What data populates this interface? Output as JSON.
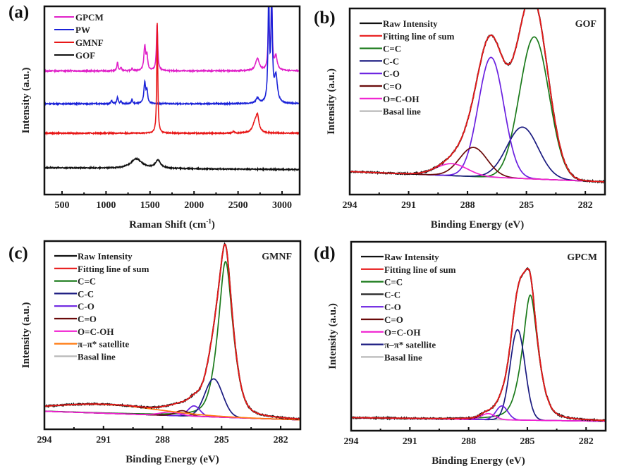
{
  "chart_data": [
    {
      "panel": "(a)",
      "type": "line",
      "title": "",
      "xlabel": "Raman Shift (cm",
      "xlabel_sup": "-1",
      "xlabel_close": ")",
      "ylabel": "Intensity (a.u.)",
      "xlim": [
        300,
        3200
      ],
      "xticks": [
        500,
        1000,
        1500,
        2000,
        2500,
        3000
      ],
      "yticks": [],
      "legend_position": "top-left",
      "offset_stacked": true,
      "series": [
        {
          "name": "GPCM",
          "color": "#e020c8",
          "baseline": 0.66,
          "peaks": [
            [
              1130,
              0.05,
              8
            ],
            [
              1170,
              0.02,
              8
            ],
            [
              1295,
              0.015,
              8
            ],
            [
              1440,
              0.14,
              12
            ],
            [
              1465,
              0.08,
              10
            ],
            [
              1580,
              0.27,
              9
            ],
            [
              2720,
              0.07,
              25
            ],
            [
              2848,
              0.3,
              9
            ],
            [
              2882,
              0.42,
              8
            ],
            [
              2930,
              0.08,
              18
            ]
          ]
        },
        {
          "name": "PW",
          "color": "#1a22d8",
          "baseline": 0.47,
          "peaks": [
            [
              1063,
              0.02,
              8
            ],
            [
              1130,
              0.04,
              8
            ],
            [
              1170,
              0.015,
              8
            ],
            [
              1295,
              0.025,
              8
            ],
            [
              1440,
              0.12,
              12
            ],
            [
              1465,
              0.07,
              10
            ],
            [
              2720,
              0.03,
              20
            ],
            [
              2848,
              0.6,
              9
            ],
            [
              2882,
              0.58,
              10
            ],
            [
              2930,
              0.15,
              20
            ]
          ]
        },
        {
          "name": "GMNF",
          "color": "#e81818",
          "baseline": 0.3,
          "peaks": [
            [
              1582,
              0.64,
              7
            ],
            [
              2450,
              0.01,
              10
            ],
            [
              2690,
              0.05,
              30
            ],
            [
              2720,
              0.09,
              20
            ]
          ]
        },
        {
          "name": "GOF",
          "color": "#111111",
          "baseline": 0.1,
          "peaks": [
            [
              1345,
              0.055,
              75
            ],
            [
              1590,
              0.045,
              35
            ]
          ]
        }
      ]
    },
    {
      "panel": "(b)",
      "sample": "GOF",
      "type": "line",
      "xlabel": "Binding Energy (eV)",
      "ylabel": "Intensity (a.u.)",
      "xlim": [
        294,
        281
      ],
      "xticks": [
        294,
        291,
        288,
        285,
        282
      ],
      "legend_position": "top-left",
      "baseline_line": {
        "left": 0.08,
        "right": 0.02
      },
      "components": [
        {
          "name": "C=C",
          "color": "#1a7a1a",
          "center": 284.6,
          "height": 0.83,
          "width": 0.75
        },
        {
          "name": "C-C",
          "color": "#1a1a80",
          "center": 285.2,
          "height": 0.3,
          "width": 0.8
        },
        {
          "name": "C-O",
          "color": "#6a20e0",
          "center": 286.8,
          "height": 0.7,
          "width": 0.65
        },
        {
          "name": "C=O",
          "color": "#6a0a0a",
          "center": 287.7,
          "height": 0.17,
          "width": 0.7
        },
        {
          "name": "O=C-OH",
          "color": "#f020d0",
          "center": 288.8,
          "height": 0.07,
          "width": 0.8
        }
      ],
      "legend": [
        {
          "name": "Raw Intensity",
          "color": "#111111"
        },
        {
          "name": "Fitting line of sum",
          "color": "#e81818"
        },
        {
          "name": "C=C",
          "color": "#1a7a1a"
        },
        {
          "name": "C-C",
          "color": "#1a1a80"
        },
        {
          "name": "C-O",
          "color": "#6a20e0"
        },
        {
          "name": "C=O",
          "color": "#6a0a0a"
        },
        {
          "name": "O=C-OH",
          "color": "#f020d0"
        },
        {
          "name": "Basal line",
          "color": "#b8b8b8"
        }
      ]
    },
    {
      "panel": "(c)",
      "sample": "GMNF",
      "type": "line",
      "xlabel": "Binding Energy (eV)",
      "ylabel": "Intensity (a.u.)",
      "xlim": [
        294,
        281
      ],
      "xticks": [
        294,
        291,
        288,
        285,
        282
      ],
      "legend_position": "top-left",
      "baseline_line": {
        "left": 0.05,
        "right": 0.0
      },
      "components": [
        {
          "name": "C=C",
          "color": "#1a7a1a",
          "center": 284.8,
          "height": 0.9,
          "width": 0.38,
          "lorentz": true
        },
        {
          "name": "C-C",
          "color": "#1a1a80",
          "center": 285.4,
          "height": 0.22,
          "width": 0.45
        },
        {
          "name": "C-O",
          "color": "#6a20e0",
          "center": 286.4,
          "height": 0.06,
          "width": 0.3
        },
        {
          "name": "C=O",
          "color": "#6a0a0a",
          "center": 287.0,
          "height": 0.03,
          "width": 0.35
        },
        {
          "name": "O=C-OH",
          "color": "#f020d0",
          "center": 287.6,
          "height": 0.02,
          "width": 0.5
        },
        {
          "name": "π–π* satellite",
          "color": "#ff7a10",
          "center": 291.0,
          "height": 0.05,
          "width": 2.8
        }
      ],
      "legend": [
        {
          "name": "Raw Intensity",
          "color": "#111111"
        },
        {
          "name": "Fitting line of sum",
          "color": "#e81818"
        },
        {
          "name": "C=C",
          "color": "#1a7a1a"
        },
        {
          "name": "C-C",
          "color": "#1a1a80"
        },
        {
          "name": "C-O",
          "color": "#6a20e0"
        },
        {
          "name": "C=O",
          "color": "#6a0a0a"
        },
        {
          "name": "O=C-OH",
          "color": "#f020d0"
        },
        {
          "name": "π–π* satellite",
          "color": "#ff7a10"
        },
        {
          "name": "Basal line",
          "color": "#b8b8b8"
        }
      ]
    },
    {
      "panel": "(d)",
      "sample": "GPCM",
      "type": "line",
      "xlabel": "Binding Energy (eV)",
      "ylabel": "Intensity (a.u.)",
      "xlim": [
        294,
        281
      ],
      "xticks": [
        294,
        291,
        288,
        285,
        282
      ],
      "legend_position": "top-left",
      "baseline_line": {
        "left": 0.02,
        "right": 0.0
      },
      "components": [
        {
          "name": "C=C",
          "color": "#1a7a1a",
          "center": 284.85,
          "height": 0.72,
          "width": 0.4,
          "lorentz": true
        },
        {
          "name": "π–π* satellite",
          "color": "#1a1a80",
          "center": 285.5,
          "height": 0.52,
          "width": 0.38
        },
        {
          "name": "C-O",
          "color": "#6a20e0",
          "center": 286.3,
          "height": 0.08,
          "width": 0.3
        },
        {
          "name": "O=C-OH",
          "color": "#f020d0",
          "center": 287.0,
          "height": 0.035,
          "width": 0.35
        },
        {
          "name": "C=O",
          "color": "#6a0a0a",
          "center": 289.0,
          "height": 0.0,
          "width": 0.5
        },
        {
          "name": "C-C",
          "color": "#222222",
          "center": 289.5,
          "height": 0.0,
          "width": 0.5
        }
      ],
      "legend": [
        {
          "name": "Raw Intensity",
          "color": "#111111"
        },
        {
          "name": "Fitting line of sum",
          "color": "#e81818"
        },
        {
          "name": "C=C",
          "color": "#1a7a1a"
        },
        {
          "name": "C-C",
          "color": "#222222"
        },
        {
          "name": "C-O",
          "color": "#6a20e0"
        },
        {
          "name": "C=O",
          "color": "#6a0a0a"
        },
        {
          "name": "O=C-OH",
          "color": "#f020d0"
        },
        {
          "name": "π–π* satellite",
          "color": "#1a1a80"
        },
        {
          "name": "Basal line",
          "color": "#b8b8b8"
        }
      ]
    }
  ]
}
